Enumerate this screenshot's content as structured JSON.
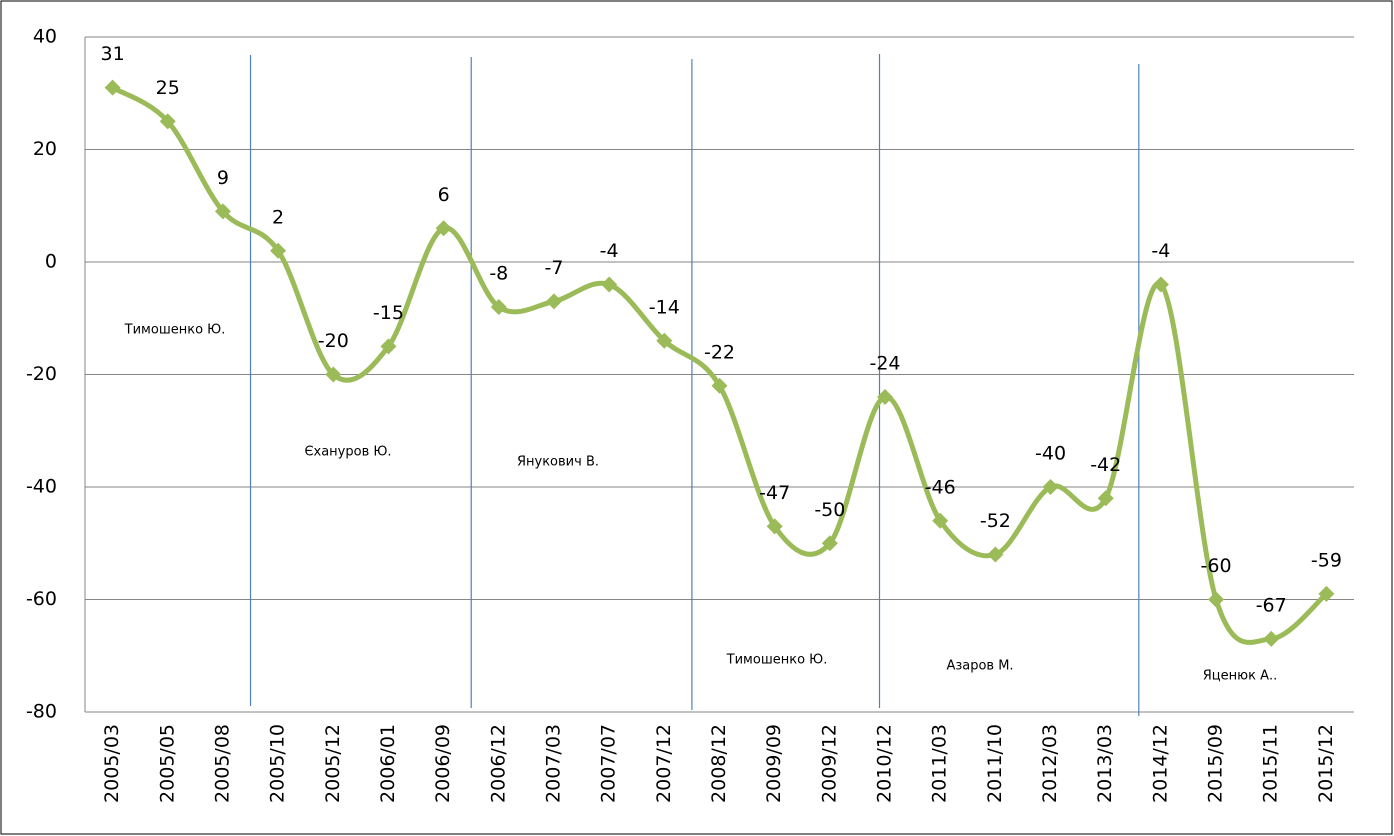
{
  "chart_data": {
    "type": "line",
    "categories": [
      "2005/03",
      "2005/05",
      "2005/08",
      "2005/10",
      "2005/12",
      "2006/01",
      "2006/09",
      "2006/12",
      "2007/03",
      "2007/07",
      "2007/12",
      "2008/12",
      "2009/09",
      "2009/12",
      "2010/12",
      "2011/03",
      "2011/10",
      "2012/03",
      "2013/03",
      "2014/12",
      "2015/09",
      "2015/11",
      "2015/12"
    ],
    "values": [
      31,
      25,
      9,
      2,
      -20,
      -15,
      6,
      -8,
      -7,
      -4,
      -14,
      -22,
      -47,
      -50,
      -24,
      -46,
      -52,
      -40,
      -42,
      -4,
      -60,
      -67,
      -59
    ],
    "color": "#9bbb59",
    "ylim": [
      -80,
      40
    ],
    "yticks": [
      -80,
      -60,
      -40,
      -20,
      0,
      20,
      40
    ],
    "grid": true,
    "annotations": [
      "Тимошенко Ю.",
      "Єхануров  Ю.",
      "Янукович В.",
      "Тимошенко Ю.",
      "Азаров  М.",
      "Яценюк А.."
    ]
  }
}
